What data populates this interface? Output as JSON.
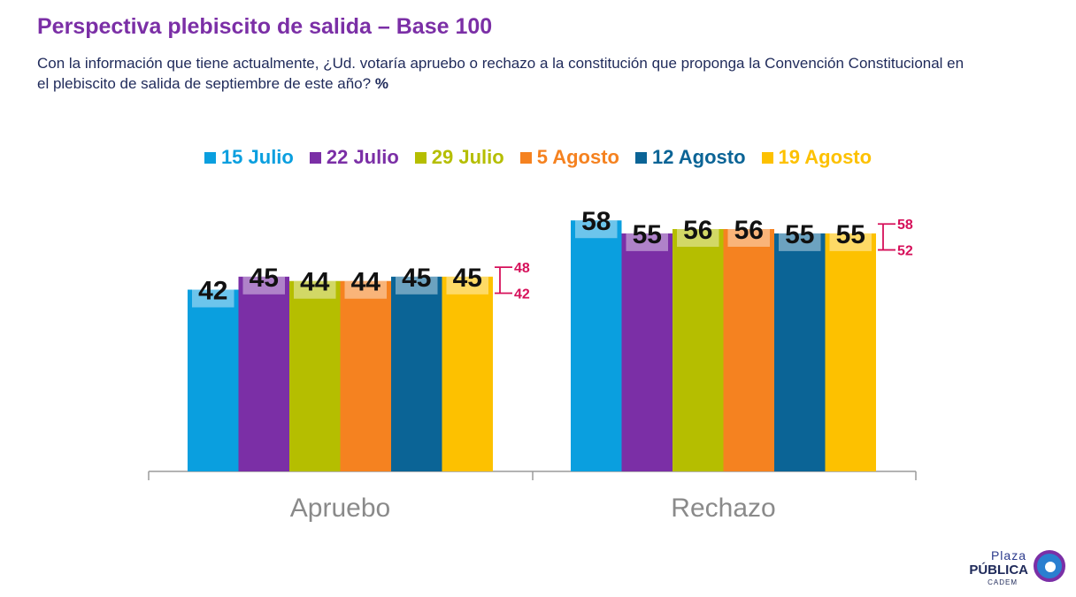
{
  "header": {
    "title": "Perspectiva plebiscito de salida – Base 100",
    "subtitle": "Con la información que tiene actualmente, ¿Ud. votaría apruebo o rechazo a la constitución que proponga la Convención Constitucional en el plebiscito de salida de septiembre de este año?",
    "subtitle_unit": "%"
  },
  "logo": {
    "line1": "Plaza",
    "line2": "PÚBLICA",
    "line3": "CADEM"
  },
  "chart_data": {
    "type": "bar",
    "categories": [
      "Apruebo",
      "Rechazo"
    ],
    "series": [
      {
        "name": "15 Julio",
        "color": "#0A9FDF",
        "values": [
          42,
          58
        ]
      },
      {
        "name": "22 Julio",
        "color": "#7B2FA6",
        "values": [
          45,
          55
        ]
      },
      {
        "name": "29 Julio",
        "color": "#B5BE00",
        "values": [
          44,
          56
        ]
      },
      {
        "name": "5 Agosto",
        "color": "#F58220",
        "values": [
          44,
          56
        ]
      },
      {
        "name": "12 Agosto",
        "color": "#0B6496",
        "values": [
          45,
          55
        ]
      },
      {
        "name": "19 Agosto",
        "color": "#FDC100",
        "values": [
          45,
          55
        ]
      }
    ],
    "ranges": [
      {
        "category": "Apruebo",
        "max": 48,
        "min": 42,
        "color": "#D6105A"
      },
      {
        "category": "Rechazo",
        "max": 58,
        "min": 52,
        "color": "#D6105A"
      }
    ],
    "ylim": [
      0,
      70
    ],
    "grid": false,
    "legend_position": "top"
  }
}
